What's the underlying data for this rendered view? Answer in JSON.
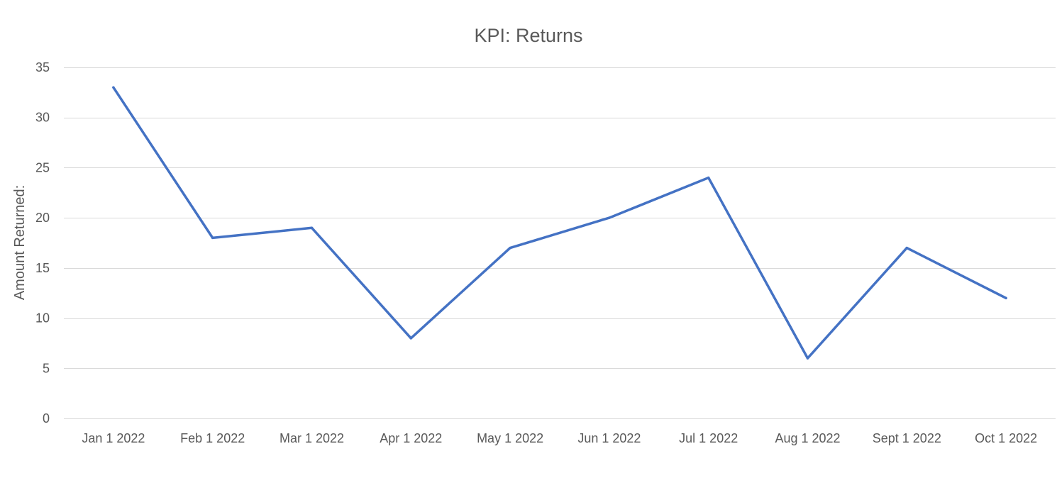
{
  "chart_data": {
    "type": "line",
    "title": "KPI: Returns",
    "xlabel": "",
    "ylabel": "Amount Returned:",
    "categories": [
      "Jan 1 2022",
      "Feb 1 2022",
      "Mar 1 2022",
      "Apr 1 2022",
      "May 1 2022",
      "Jun 1 2022",
      "Jul 1 2022",
      "Aug 1 2022",
      "Sept 1 2022",
      "Oct 1 2022"
    ],
    "series": [
      {
        "values": [
          33,
          18,
          19,
          8,
          17,
          20,
          24,
          6,
          17,
          12
        ],
        "color": "#4472c4"
      }
    ],
    "ylim": [
      0,
      35
    ],
    "yticks": [
      0,
      5,
      10,
      15,
      20,
      25,
      30,
      35
    ],
    "grid": true,
    "legend": "none"
  }
}
